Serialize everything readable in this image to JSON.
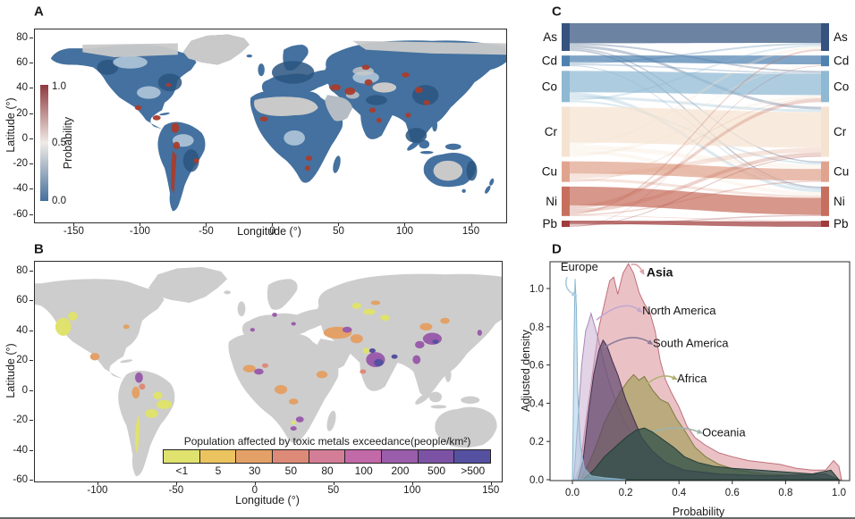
{
  "chart_data": [
    {
      "id": "A",
      "panel": "A",
      "type": "map",
      "description": "Global map of probability of toxic metal exceedance",
      "xlabel": "Longitude (°)",
      "ylabel": "Latitude (°)",
      "x_ticks": [
        "-150",
        "-100",
        "-50",
        "0",
        "50",
        "100",
        "150"
      ],
      "y_ticks": [
        "80",
        "60",
        "40",
        "20",
        "0",
        "-20",
        "-40",
        "-60"
      ],
      "lon_range": [
        -180,
        176
      ],
      "lat_range": [
        -66,
        87
      ],
      "colorbar": {
        "label": "Probability",
        "tick_labels": [
          "1.0",
          "0.5",
          "0.0"
        ],
        "gradient": [
          "#8e3a3f",
          "#f0ebe6",
          "#46709c"
        ]
      },
      "palette": {
        "land_base": "#44719f",
        "no_data": "#c9c9c9",
        "hotspot": "#a93c2d"
      }
    },
    {
      "id": "B",
      "panel": "B",
      "type": "map",
      "description": "Global map of population affected by toxic metals exceedance",
      "xlabel": "Longitude (°)",
      "ylabel": "Latitude (°)",
      "x_ticks": [
        "-100",
        "-50",
        "0",
        "50",
        "100",
        "150"
      ],
      "y_ticks": [
        "80",
        "60",
        "40",
        "20",
        "0",
        "-20",
        "-40",
        "-60"
      ],
      "lon_range": [
        -140,
        156
      ],
      "lat_range": [
        -61,
        87
      ],
      "legend": {
        "title": "Population affected by toxic metals exceedance(people/km²)",
        "bins": [
          {
            "label": "<1",
            "color": "#dfe26d"
          },
          {
            "label": "5",
            "color": "#ecc45f"
          },
          {
            "label": "30",
            "color": "#e3a167"
          },
          {
            "label": "50",
            "color": "#dd8a79"
          },
          {
            "label": "80",
            "color": "#d37e96"
          },
          {
            "label": "100",
            "color": "#c269a8"
          },
          {
            "label": "200",
            "color": "#9a5dab"
          },
          {
            "label": "500",
            "color": "#7c52a5"
          },
          {
            "label": ">500",
            "color": "#55509f"
          }
        ]
      },
      "palette": {
        "land_base": "#cdcdcd"
      }
    },
    {
      "id": "C",
      "panel": "C",
      "type": "sankey",
      "description": "Alluvial diagram of co-occurrence between toxic metals (left and right node columns)",
      "nodes": [
        {
          "name": "As",
          "color": "#35537e",
          "size": 31
        },
        {
          "name": "Cd",
          "color": "#4f81b0",
          "size": 12
        },
        {
          "name": "Co",
          "color": "#8fb8d2",
          "size": 35
        },
        {
          "name": "Cr",
          "color": "#f5e3d1",
          "size": 56
        },
        {
          "name": "Cu",
          "color": "#e0a48e",
          "size": 23
        },
        {
          "name": "Ni",
          "color": "#c76f5e",
          "size": 33
        },
        {
          "name": "Pb",
          "color": "#a03c3c",
          "size": 7
        }
      ],
      "flows": [
        [
          "As",
          "As",
          22
        ],
        [
          "As",
          "Co",
          2
        ],
        [
          "As",
          "Cr",
          3
        ],
        [
          "As",
          "Cu",
          1.5
        ],
        [
          "As",
          "Ni",
          2
        ],
        [
          "Cd",
          "Cd",
          7
        ],
        [
          "Cd",
          "As",
          2
        ],
        [
          "Cd",
          "Co",
          1.5
        ],
        [
          "Cd",
          "Ni",
          1
        ],
        [
          "Co",
          "Co",
          24
        ],
        [
          "Co",
          "Ni",
          4
        ],
        [
          "Co",
          "Cr",
          3
        ],
        [
          "Co",
          "As",
          2
        ],
        [
          "Co",
          "Cu",
          2
        ],
        [
          "Cr",
          "Cr",
          40
        ],
        [
          "Cr",
          "As",
          3
        ],
        [
          "Cr",
          "Cu",
          5
        ],
        [
          "Cr",
          "Ni",
          4
        ],
        [
          "Cr",
          "Co",
          3
        ],
        [
          "Cr",
          "Cd",
          1
        ],
        [
          "Cu",
          "Cu",
          13
        ],
        [
          "Cu",
          "Cr",
          5
        ],
        [
          "Cu",
          "Ni",
          3
        ],
        [
          "Cu",
          "Co",
          1
        ],
        [
          "Ni",
          "Ni",
          21
        ],
        [
          "Ni",
          "Co",
          4
        ],
        [
          "Ni",
          "Cr",
          4
        ],
        [
          "Ni",
          "As",
          2
        ],
        [
          "Ni",
          "Cu",
          1.5
        ],
        [
          "Ni",
          "Pb",
          0.5
        ],
        [
          "Pb",
          "Pb",
          3.5
        ],
        [
          "Pb",
          "Ni",
          1.5
        ],
        [
          "Pb",
          "Cr",
          1
        ],
        [
          "Pb",
          "Cd",
          0.5
        ]
      ]
    },
    {
      "id": "D",
      "panel": "D",
      "type": "area",
      "description": "Kernel density of exceedance probability by continent",
      "xlabel": "Probability",
      "ylabel": "Adjusted density",
      "x_ticks": [
        "0.0",
        "0.2",
        "0.4",
        "0.6",
        "0.8",
        "1.0"
      ],
      "y_ticks": [
        "0.0",
        "0.2",
        "0.4",
        "0.6",
        "0.8",
        "1.0"
      ],
      "xlim": [
        -0.08,
        1.04
      ],
      "ylim": [
        0,
        1.15
      ],
      "series": [
        {
          "name": "Asia",
          "fill": "#d98f97",
          "stroke": "#c06f79",
          "opacity": 0.55,
          "points": [
            [
              0.01,
              0
            ],
            [
              0.03,
              0.08
            ],
            [
              0.05,
              0.3
            ],
            [
              0.08,
              0.6
            ],
            [
              0.1,
              0.8
            ],
            [
              0.12,
              0.92
            ],
            [
              0.14,
              1.04
            ],
            [
              0.155,
              1.06
            ],
            [
              0.17,
              0.97
            ],
            [
              0.19,
              1.08
            ],
            [
              0.21,
              1.13
            ],
            [
              0.23,
              1.08
            ],
            [
              0.25,
              0.98
            ],
            [
              0.27,
              0.92
            ],
            [
              0.29,
              0.88
            ],
            [
              0.31,
              0.78
            ],
            [
              0.33,
              0.62
            ],
            [
              0.35,
              0.52
            ],
            [
              0.37,
              0.46
            ],
            [
              0.4,
              0.38
            ],
            [
              0.43,
              0.28
            ],
            [
              0.46,
              0.22
            ],
            [
              0.5,
              0.18
            ],
            [
              0.55,
              0.14
            ],
            [
              0.6,
              0.12
            ],
            [
              0.66,
              0.1
            ],
            [
              0.72,
              0.09
            ],
            [
              0.78,
              0.08
            ],
            [
              0.84,
              0.06
            ],
            [
              0.9,
              0.05
            ],
            [
              0.95,
              0.05
            ],
            [
              0.98,
              0.1
            ],
            [
              1.0,
              0.07
            ],
            [
              1.01,
              0
            ]
          ]
        },
        {
          "name": "North America",
          "fill": "#cbaed3",
          "stroke": "#a788b5",
          "opacity": 0.55,
          "points": [
            [
              0.005,
              0
            ],
            [
              0.02,
              0.3
            ],
            [
              0.035,
              0.6
            ],
            [
              0.05,
              0.78
            ],
            [
              0.06,
              0.82
            ],
            [
              0.07,
              0.87
            ],
            [
              0.085,
              0.8
            ],
            [
              0.1,
              0.72
            ],
            [
              0.12,
              0.6
            ],
            [
              0.14,
              0.5
            ],
            [
              0.17,
              0.38
            ],
            [
              0.2,
              0.29
            ],
            [
              0.24,
              0.2
            ],
            [
              0.28,
              0.13
            ],
            [
              0.33,
              0.08
            ],
            [
              0.4,
              0.05
            ],
            [
              0.5,
              0.03
            ],
            [
              0.65,
              0.02
            ],
            [
              0.85,
              0.01
            ],
            [
              1.0,
              0
            ]
          ]
        },
        {
          "name": "Africa",
          "fill": "#9a9a4e",
          "stroke": "#7d7d3c",
          "opacity": 0.6,
          "points": [
            [
              0.03,
              0
            ],
            [
              0.06,
              0.08
            ],
            [
              0.09,
              0.18
            ],
            [
              0.12,
              0.3
            ],
            [
              0.15,
              0.38
            ],
            [
              0.18,
              0.46
            ],
            [
              0.21,
              0.52
            ],
            [
              0.23,
              0.55
            ],
            [
              0.25,
              0.52
            ],
            [
              0.27,
              0.54
            ],
            [
              0.3,
              0.47
            ],
            [
              0.33,
              0.42
            ],
            [
              0.36,
              0.4
            ],
            [
              0.39,
              0.32
            ],
            [
              0.42,
              0.26
            ],
            [
              0.46,
              0.17
            ],
            [
              0.5,
              0.12
            ],
            [
              0.55,
              0.08
            ],
            [
              0.62,
              0.05
            ],
            [
              0.72,
              0.03
            ],
            [
              0.85,
              0.02
            ],
            [
              1.0,
              0
            ]
          ]
        },
        {
          "name": "South America",
          "fill": "#5c4468",
          "stroke": "#43304e",
          "opacity": 0.68,
          "points": [
            [
              0.02,
              0
            ],
            [
              0.04,
              0.1
            ],
            [
              0.06,
              0.35
            ],
            [
              0.08,
              0.55
            ],
            [
              0.1,
              0.68
            ],
            [
              0.115,
              0.73
            ],
            [
              0.13,
              0.7
            ],
            [
              0.15,
              0.62
            ],
            [
              0.17,
              0.55
            ],
            [
              0.2,
              0.42
            ],
            [
              0.23,
              0.32
            ],
            [
              0.26,
              0.22
            ],
            [
              0.3,
              0.15
            ],
            [
              0.35,
              0.09
            ],
            [
              0.42,
              0.05
            ],
            [
              0.55,
              0.03
            ],
            [
              0.75,
              0.02
            ],
            [
              0.95,
              0.03
            ],
            [
              1.0,
              0
            ]
          ]
        },
        {
          "name": "Oceania",
          "fill": "#2f4f48",
          "stroke": "#233c36",
          "opacity": 0.75,
          "points": [
            [
              0.04,
              0
            ],
            [
              0.08,
              0.05
            ],
            [
              0.12,
              0.12
            ],
            [
              0.16,
              0.17
            ],
            [
              0.2,
              0.22
            ],
            [
              0.24,
              0.26
            ],
            [
              0.27,
              0.27
            ],
            [
              0.3,
              0.25
            ],
            [
              0.34,
              0.21
            ],
            [
              0.38,
              0.17
            ],
            [
              0.42,
              0.12
            ],
            [
              0.47,
              0.09
            ],
            [
              0.53,
              0.07
            ],
            [
              0.6,
              0.06
            ],
            [
              0.7,
              0.05
            ],
            [
              0.8,
              0.04
            ],
            [
              0.9,
              0.03
            ],
            [
              0.97,
              0.05
            ],
            [
              1.0,
              0
            ]
          ]
        },
        {
          "name": "Europe",
          "fill": "#aacfe4",
          "stroke": "#86b5d1",
          "opacity": 0.55,
          "points": [
            [
              0,
              0
            ],
            [
              0.003,
              0.3
            ],
            [
              0.007,
              0.8
            ],
            [
              0.01,
              1.05
            ],
            [
              0.015,
              0.9
            ],
            [
              0.02,
              0.45
            ],
            [
              0.03,
              0.18
            ],
            [
              0.045,
              0.06
            ],
            [
              0.07,
              0.02
            ],
            [
              0.12,
              0.01
            ],
            [
              0.2,
              0
            ]
          ]
        }
      ],
      "annotations": [
        {
          "label": "Europe",
          "bold": false,
          "tx": -0.044,
          "ty": 1.115,
          "color": "#a9cde2",
          "arrow": {
            "from": [
              -0.02,
              1.06
            ],
            "ctrl": [
              -0.035,
              1.0
            ],
            "to": [
              0.005,
              0.97
            ]
          }
        },
        {
          "label": "Asia",
          "bold": true,
          "tx": 0.278,
          "ty": 1.085,
          "color": "#dca3aa",
          "arrow": {
            "from": [
              0.22,
              1.125
            ],
            "ctrl": [
              0.245,
              1.135
            ],
            "to": [
              0.262,
              1.09
            ]
          }
        },
        {
          "label": "North America",
          "bold": false,
          "tx": 0.262,
          "ty": 0.885,
          "color": "#c3a8cf",
          "arrow": {
            "from": [
              0.09,
              0.835
            ],
            "ctrl": [
              0.19,
              0.95
            ],
            "to": [
              0.25,
              0.888
            ]
          }
        },
        {
          "label": "South America",
          "bold": false,
          "tx": 0.302,
          "ty": 0.715,
          "color": "#8d7d99",
          "arrow": {
            "from": [
              0.118,
              0.69
            ],
            "ctrl": [
              0.22,
              0.78
            ],
            "to": [
              0.29,
              0.718
            ]
          }
        },
        {
          "label": "Africa",
          "bold": false,
          "tx": 0.393,
          "ty": 0.53,
          "color": "#b2b272",
          "arrow": {
            "from": [
              0.272,
              0.49
            ],
            "ctrl": [
              0.33,
              0.565
            ],
            "to": [
              0.381,
              0.532
            ]
          }
        },
        {
          "label": "Oceania",
          "bold": false,
          "tx": 0.487,
          "ty": 0.247,
          "color": "#9fb3ad",
          "arrow": {
            "from": [
              0.303,
              0.252
            ],
            "ctrl": [
              0.4,
              0.29
            ],
            "to": [
              0.475,
              0.25
            ]
          }
        }
      ]
    }
  ]
}
